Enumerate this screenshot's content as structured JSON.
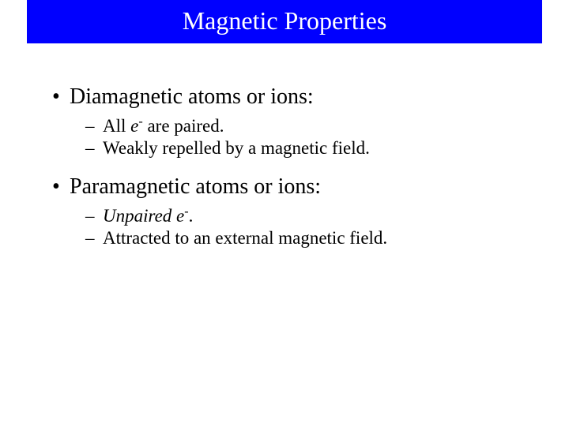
{
  "title": "Magnetic Properties",
  "colors": {
    "title_bg": "#0000ff",
    "title_fg": "#ffffff",
    "body_bg": "#ffffff",
    "text": "#000000"
  },
  "fonts": {
    "family": "Times New Roman, serif",
    "title_size_pt": 32,
    "bullet_l1_size_pt": 28,
    "bullet_l2_size_pt": 23
  },
  "sections": [
    {
      "heading": "Diamagnetic atoms or ions:",
      "subpoints": [
        {
          "pre": "All ",
          "italic": "e",
          "sup": "-",
          "post": " are paired."
        },
        {
          "pre": "Weakly repelled by a magnetic field.",
          "italic": "",
          "sup": "",
          "post": ""
        }
      ]
    },
    {
      "heading": "Paramagnetic atoms or ions:",
      "subpoints": [
        {
          "pre": "",
          "italic": "Unpaired e",
          "sup": "-",
          "post": "."
        },
        {
          "pre": "Attracted to an external magnetic field.",
          "italic": "",
          "sup": "",
          "post": ""
        }
      ]
    }
  ]
}
